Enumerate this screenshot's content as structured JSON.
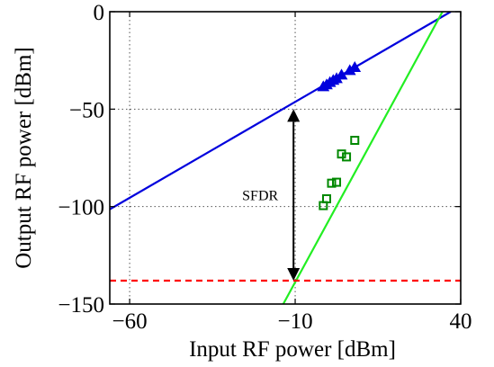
{
  "chart_data": {
    "type": "line",
    "xlabel": "Input RF power [dBm]",
    "ylabel": "Output RF power [dBm]",
    "xlim": [
      -66,
      40
    ],
    "ylim": [
      -150,
      0
    ],
    "x_ticks": [
      -60,
      -10,
      40
    ],
    "x_tick_labels": [
      "−60",
      "−10",
      "40"
    ],
    "y_ticks": [
      0,
      -50,
      -100,
      -150
    ],
    "y_tick_labels": [
      "0",
      "−50",
      "−100",
      "−150"
    ],
    "grid": true,
    "colors": {
      "fundamental": "#0000dd",
      "im3": "#22ee22",
      "im3_markers": "#008800",
      "noise_floor": "#ff0000",
      "arrow": "#000000"
    },
    "series": [
      {
        "kind": "fit_line",
        "color_key": "fundamental",
        "x": [
          -66,
          37
        ],
        "y": [
          -101.4,
          0
        ]
      },
      {
        "kind": "markers",
        "marker": "triangle",
        "color_key": "fundamental",
        "x": [
          -1.5,
          -0.5,
          0.5,
          1.5,
          2.5,
          4,
          6.5,
          8
        ],
        "y": [
          -38.5,
          -37.5,
          -36.3,
          -35.2,
          -34.3,
          -32.5,
          -30.2,
          -28.6
        ]
      },
      {
        "kind": "fit_line",
        "color_key": "im3",
        "x": [
          -13.6,
          34.5
        ],
        "y": [
          -150,
          0
        ]
      },
      {
        "kind": "markers",
        "marker": "square",
        "color_key": "im3_markers",
        "x": [
          -1.5,
          -0.5,
          1,
          2.5,
          4,
          5.5,
          8
        ],
        "y": [
          -99.5,
          -96,
          -88,
          -87.5,
          -73,
          -74.5,
          -66
        ]
      },
      {
        "kind": "hline_dashed",
        "color_key": "noise_floor",
        "y": -138
      }
    ],
    "annotations": [
      {
        "kind": "double_arrow",
        "x": -10.5,
        "y_from": -50,
        "y_to": -138,
        "label": "SFDR"
      }
    ]
  }
}
